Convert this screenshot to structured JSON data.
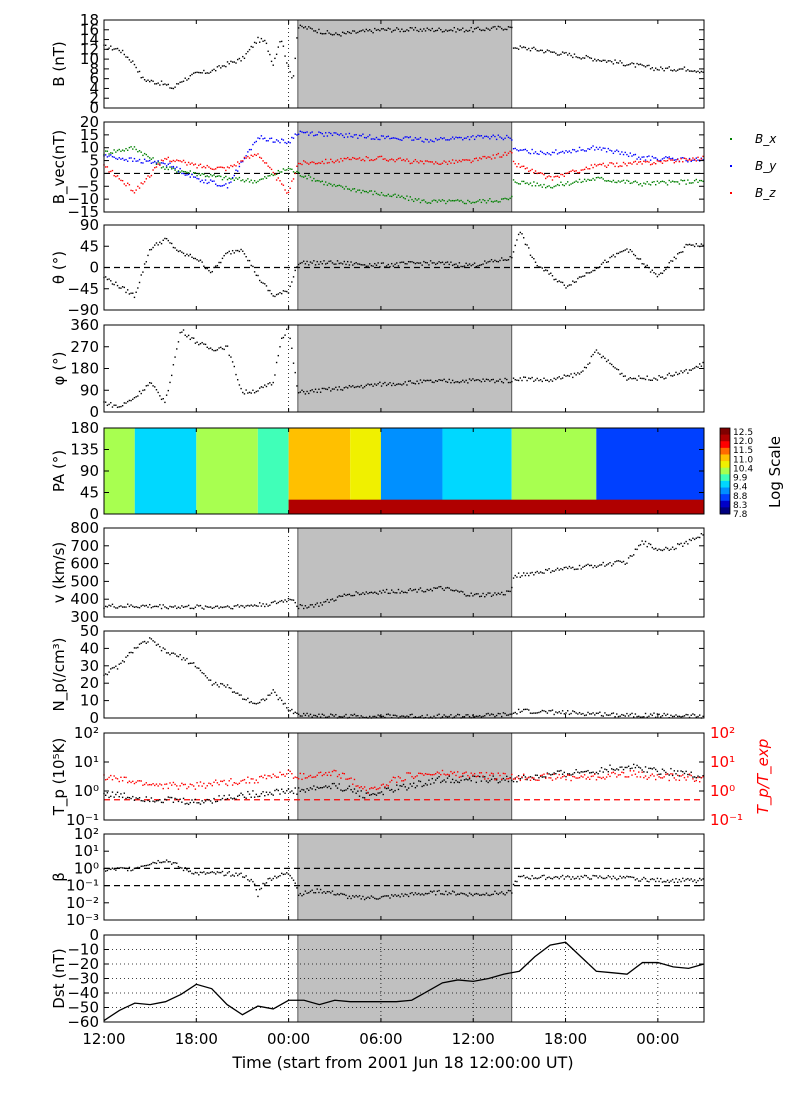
{
  "figure": {
    "xlabel": "Time (start from 2001 Jun 18 12:00:00 UT)",
    "time_range_hours": [
      0,
      39
    ],
    "shaded_interval_hours": [
      12.6,
      26.5
    ],
    "shade_color": "#c0c0c0",
    "x_ticks": [
      {
        "t": 0,
        "label": "12:00"
      },
      {
        "t": 6,
        "label": "18:00"
      },
      {
        "t": 12,
        "label": "00:00"
      },
      {
        "t": 18,
        "label": "06:00"
      },
      {
        "t": 24,
        "label": "12:00"
      },
      {
        "t": 30,
        "label": "18:00"
      },
      {
        "t": 36,
        "label": "00:00"
      }
    ]
  },
  "colorbar": {
    "label": "Log Scale",
    "ticks": [
      "12.5",
      "12.0",
      "11.5",
      "11.0",
      "10.4",
      "9.9",
      "9.4",
      "8.8",
      "8.3",
      "7.8"
    ],
    "colors": [
      "#7f0000",
      "#b00000",
      "#ff0000",
      "#ff6a00",
      "#ffc000",
      "#f0f000",
      "#a8ff50",
      "#40ffb8",
      "#00d8ff",
      "#0090ff",
      "#0040ff",
      "#0000c8",
      "#00007f"
    ]
  },
  "chart_data": [
    {
      "id": "B",
      "type": "scatter",
      "ylabel": "B (nT)",
      "ylim": [
        0,
        18
      ],
      "yticks": [
        "0",
        "2",
        "4",
        "6",
        "8",
        "10",
        "12",
        "14",
        "16",
        "18"
      ],
      "series": [
        {
          "color": "#000000",
          "x": [
            0,
            1,
            2,
            2.5,
            3,
            3.8,
            4.5,
            5,
            6,
            7,
            8,
            9,
            10,
            10.5,
            11,
            11.5,
            12,
            12.3,
            12.6,
            13,
            15,
            18,
            21,
            24,
            26.5,
            26.6,
            28,
            30,
            32,
            34,
            36,
            38,
            39
          ],
          "y": [
            12.5,
            12,
            9,
            6,
            5.5,
            5,
            4,
            5.5,
            7,
            7.5,
            9,
            10,
            14,
            13.5,
            9,
            14.5,
            8,
            6,
            16.5,
            16.5,
            15,
            16,
            16,
            16,
            16.5,
            12.5,
            12,
            11,
            10,
            9,
            8,
            8,
            7.5
          ]
        }
      ]
    },
    {
      "id": "Bvec",
      "type": "scatter",
      "ylabel": "B_vec(nT)",
      "ylim": [
        -15,
        20
      ],
      "yticks": [
        "−15",
        "−10",
        "−5",
        "0",
        "5",
        "10",
        "15",
        "20"
      ],
      "reference_line": 0,
      "series": [
        {
          "name": "B_x",
          "color": "#008000",
          "x": [
            0,
            2,
            4,
            6,
            8,
            10,
            12,
            12.6,
            15,
            18,
            21,
            24,
            26.5,
            26.6,
            29,
            32,
            35,
            39
          ],
          "y": [
            8,
            10,
            2,
            0,
            -2,
            -3,
            2,
            0,
            -5,
            -8,
            -11,
            -11,
            -10,
            -3,
            -5,
            -2,
            -4,
            -3
          ]
        },
        {
          "name": "B_y",
          "color": "#0000ff",
          "x": [
            0,
            2,
            4,
            6,
            8,
            10,
            12,
            12.6,
            15,
            18,
            21,
            24,
            26.5,
            26.6,
            29,
            32,
            35,
            39
          ],
          "y": [
            7,
            5,
            4,
            -2,
            -5,
            14,
            12,
            16,
            15,
            14,
            13,
            14,
            14,
            9,
            8,
            10,
            6,
            5
          ]
        },
        {
          "name": "B_z",
          "color": "#ff0000",
          "x": [
            0,
            2,
            4,
            6,
            8,
            10,
            12,
            12.6,
            15,
            18,
            21,
            24,
            26.5,
            26.6,
            29,
            32,
            35,
            39
          ],
          "y": [
            3,
            -7,
            6,
            3,
            2,
            8,
            -8,
            4,
            5,
            6,
            4,
            5,
            8,
            4,
            -2,
            3,
            4,
            6
          ]
        }
      ]
    },
    {
      "id": "theta",
      "type": "scatter",
      "ylabel": "θ (°)",
      "ylim": [
        -90,
        90
      ],
      "yticks": [
        "−90",
        "−45",
        "0",
        "45",
        "90"
      ],
      "reference_line": 0,
      "series": [
        {
          "color": "#000000",
          "x": [
            0,
            1,
            2,
            3,
            4,
            5,
            6,
            7,
            8,
            9,
            10,
            11,
            12,
            12.6,
            15,
            18,
            21,
            24,
            26.5,
            27,
            28,
            30,
            32,
            34,
            36,
            38,
            39
          ],
          "y": [
            -20,
            -40,
            -60,
            40,
            60,
            30,
            20,
            -10,
            30,
            40,
            -20,
            -60,
            -50,
            10,
            10,
            5,
            10,
            5,
            20,
            80,
            10,
            -40,
            0,
            40,
            -20,
            50,
            45
          ]
        }
      ]
    },
    {
      "id": "phi",
      "type": "scatter",
      "ylabel": "φ (°)",
      "ylim": [
        0,
        360
      ],
      "yticks": [
        "0",
        "90",
        "180",
        "270",
        "360"
      ],
      "series": [
        {
          "color": "#000000",
          "x": [
            0,
            1,
            2,
            3,
            4,
            5,
            6,
            7,
            8,
            9,
            10,
            11,
            11.5,
            12,
            12.6,
            15,
            18,
            21,
            24,
            26.5,
            27,
            29,
            31,
            32,
            34,
            36,
            38,
            39
          ],
          "y": [
            40,
            20,
            60,
            120,
            40,
            340,
            290,
            260,
            270,
            80,
            90,
            120,
            300,
            350,
            80,
            95,
            115,
            125,
            130,
            130,
            140,
            130,
            160,
            250,
            140,
            140,
            170,
            200
          ]
        }
      ]
    },
    {
      "id": "PA",
      "type": "heatmap",
      "ylabel": "PA (°)",
      "ylim": [
        0,
        180
      ],
      "yticks": [
        "0",
        "45",
        "90",
        "135",
        "180"
      ],
      "regions": [
        {
          "t": [
            0,
            2
          ],
          "value": 10.0
        },
        {
          "t": [
            2,
            6
          ],
          "value": 9.2
        },
        {
          "t": [
            6,
            10
          ],
          "value": 10.2
        },
        {
          "t": [
            10,
            12
          ],
          "value": 9.8
        },
        {
          "t": [
            12,
            16
          ],
          "value": 11.0
        },
        {
          "t": [
            16,
            18
          ],
          "value": 10.6
        },
        {
          "t": [
            18,
            22
          ],
          "value": 9.0
        },
        {
          "t": [
            22,
            26.5
          ],
          "value": 9.4
        },
        {
          "t": [
            26.5,
            32
          ],
          "value": 10.0
        },
        {
          "t": [
            32,
            39
          ],
          "value": 8.6
        }
      ],
      "low_pa_band": {
        "pa_max": 30,
        "value": 12.2,
        "t": [
          12,
          39
        ]
      }
    },
    {
      "id": "v",
      "type": "scatter",
      "ylabel": "v (km/s)",
      "ylim": [
        300,
        800
      ],
      "yticks": [
        "300",
        "400",
        "500",
        "600",
        "700",
        "800"
      ],
      "series": [
        {
          "color": "#000000",
          "x": [
            0,
            3,
            6,
            9,
            11,
            12.3,
            12.6,
            14,
            16,
            18,
            20,
            22,
            24,
            26,
            26.5,
            26.6,
            29,
            32,
            34,
            35,
            36,
            37,
            38,
            39
          ],
          "y": [
            360,
            360,
            355,
            360,
            375,
            405,
            355,
            370,
            430,
            440,
            450,
            460,
            420,
            430,
            450,
            530,
            560,
            590,
            610,
            720,
            680,
            690,
            720,
            770
          ]
        }
      ]
    },
    {
      "id": "Np",
      "type": "scatter",
      "ylabel": "N_p(/cm³)",
      "ylim": [
        0,
        50
      ],
      "yticks": [
        "0",
        "10",
        "20",
        "30",
        "40",
        "50"
      ],
      "series": [
        {
          "color": "#000000",
          "x": [
            0,
            1,
            2,
            3,
            4,
            5,
            6,
            7,
            8,
            9,
            10,
            11,
            12,
            12.6,
            15,
            18,
            21,
            24,
            26.5,
            27,
            30,
            33,
            36,
            39
          ],
          "y": [
            25,
            30,
            40,
            45,
            38,
            35,
            30,
            20,
            18,
            12,
            8,
            15,
            5,
            2,
            1,
            1,
            1,
            1,
            2,
            4,
            3,
            2,
            1.5,
            1
          ]
        }
      ]
    },
    {
      "id": "Tp",
      "type": "scatter",
      "ylabel": "T_p (10⁵K)",
      "ylabel_right": "T_p/T_exp",
      "yscale": "log",
      "ylim": [
        0.1,
        100
      ],
      "yticks": [
        "10⁻¹",
        "10⁰",
        "10¹",
        "10²"
      ],
      "reference_line": 0.5,
      "reference_color": "#ff0000",
      "series": [
        {
          "name": "T_p",
          "color": "#000000",
          "x": [
            0,
            2,
            4,
            6,
            8,
            10,
            12,
            12.6,
            15,
            17,
            18,
            20,
            22,
            24,
            26.5,
            28,
            30,
            32,
            34,
            36,
            38,
            39
          ],
          "y": [
            0.8,
            0.6,
            0.5,
            0.4,
            0.6,
            0.8,
            1.0,
            1.0,
            1.5,
            0.7,
            0.9,
            1.5,
            2.5,
            2.5,
            2.5,
            3,
            4,
            5,
            7,
            5,
            4,
            3
          ]
        },
        {
          "name": "T_p/T_exp",
          "color": "#ff0000",
          "x": [
            0,
            2,
            4,
            6,
            8,
            10,
            12,
            12.6,
            15,
            17,
            18,
            20,
            22,
            24,
            26.5,
            28,
            30,
            32,
            34,
            36,
            38,
            39
          ],
          "y": [
            3,
            2,
            1.5,
            1.5,
            2,
            2.5,
            4,
            3,
            4,
            1,
            1.5,
            3.5,
            4,
            3.5,
            3,
            3,
            3,
            3,
            4,
            3,
            3,
            2.5
          ]
        }
      ]
    },
    {
      "id": "beta",
      "type": "scatter",
      "ylabel": "β",
      "yscale": "log",
      "ylim": [
        0.001,
        100
      ],
      "yticks": [
        "10⁻³",
        "10⁻²",
        "10⁻¹",
        "10⁰",
        "10¹",
        "10²"
      ],
      "reference_lines": [
        1,
        0.1
      ],
      "series": [
        {
          "color": "#000000",
          "x": [
            0,
            2,
            3,
            4,
            5,
            6,
            8,
            9,
            10,
            11,
            12,
            12.6,
            14,
            16,
            18,
            20,
            22,
            24,
            26.5,
            27,
            30,
            33,
            36,
            39
          ],
          "y": [
            0.8,
            1,
            2,
            3,
            1,
            0.5,
            0.5,
            0.4,
            0.02,
            0.3,
            0.5,
            0.03,
            0.05,
            0.02,
            0.02,
            0.03,
            0.04,
            0.03,
            0.04,
            0.3,
            0.3,
            0.3,
            0.2,
            0.2
          ]
        }
      ]
    },
    {
      "id": "Dst",
      "type": "line",
      "ylabel": "Dst (nT)",
      "ylim": [
        -60,
        0
      ],
      "yticks": [
        "−60",
        "−50",
        "−40",
        "−30",
        "−20",
        "−10",
        "0"
      ],
      "grid": true,
      "series": [
        {
          "color": "#000000",
          "x": [
            0,
            1,
            2,
            3,
            4,
            5,
            6,
            7,
            8,
            9,
            10,
            11,
            12,
            13,
            14,
            15,
            16,
            17,
            18,
            19,
            20,
            21,
            22,
            23,
            24,
            25,
            26,
            27,
            28,
            29,
            30,
            31,
            32,
            33,
            34,
            35,
            36,
            37,
            38,
            39
          ],
          "y": [
            -59,
            -52,
            -47,
            -48,
            -46,
            -41,
            -34,
            -37,
            -48,
            -55,
            -49,
            -51,
            -45,
            -45,
            -48,
            -45,
            -46,
            -46,
            -46,
            -46,
            -45,
            -39,
            -33,
            -31,
            -32,
            -30,
            -27,
            -25,
            -15,
            -7,
            -5,
            -15,
            -25,
            -26,
            -27,
            -19,
            -19,
            -22,
            -23,
            -20
          ]
        }
      ]
    }
  ]
}
